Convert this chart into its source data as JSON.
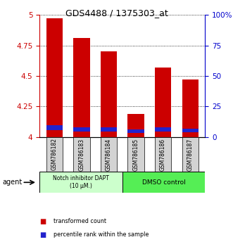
{
  "title": "GDS4488 / 1375303_at",
  "categories": [
    "GSM786182",
    "GSM786183",
    "GSM786184",
    "GSM786185",
    "GSM786186",
    "GSM786187"
  ],
  "red_tops": [
    4.97,
    4.81,
    4.7,
    4.19,
    4.57,
    4.47
  ],
  "blue_bottoms": [
    4.055,
    4.045,
    4.045,
    4.03,
    4.045,
    4.04
  ],
  "blue_heights": [
    0.04,
    0.033,
    0.033,
    0.03,
    0.033,
    0.03
  ],
  "ymin": 4.0,
  "ymax": 5.0,
  "yticks": [
    4.0,
    4.25,
    4.5,
    4.75,
    5.0
  ],
  "ytick_labels": [
    "4",
    "4.25",
    "4.5",
    "4.75",
    "5"
  ],
  "right_yticks": [
    0.0,
    0.25,
    0.5,
    0.75,
    1.0
  ],
  "right_ytick_labels": [
    "0",
    "25",
    "50",
    "75",
    "100%"
  ],
  "bar_color": "#cc0000",
  "blue_color": "#2222cc",
  "left_tick_color": "#cc0000",
  "right_tick_color": "#0000cc",
  "group1_label": "Notch inhibitor DAPT\n(10 μM.)",
  "group2_label": "DMSO control",
  "group1_color": "#ccffcc",
  "group2_color": "#55ee55",
  "agent_label": "agent",
  "legend1": "transformed count",
  "legend2": "percentile rank within the sample",
  "bar_width": 0.6,
  "background_color": "#ffffff"
}
